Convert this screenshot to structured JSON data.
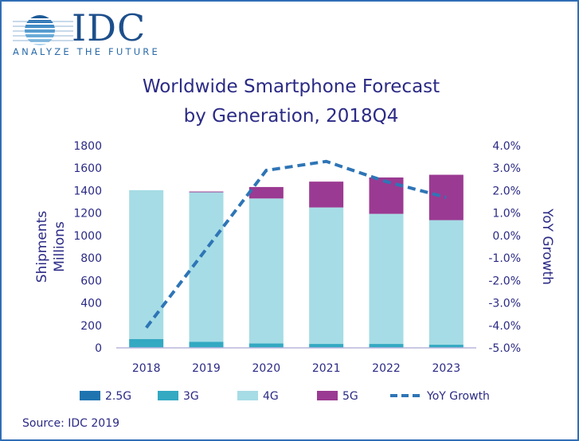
{
  "logo": {
    "name": "IDC",
    "tagline": "ANALYZE THE FUTURE"
  },
  "source": "Source: IDC 2019",
  "chart_data": {
    "type": "bar",
    "stacked": true,
    "title": "Worldwide Smartphone Forecast by Generation, 2018Q4",
    "title_lines": [
      "Worldwide Smartphone Forecast",
      "by Generation, 2018Q4"
    ],
    "ylabel_lines": [
      "Shipments",
      "Millions"
    ],
    "y2label": "YoY Growth",
    "categories": [
      "2018",
      "2019",
      "2020",
      "2021",
      "2022",
      "2023"
    ],
    "ylim": [
      0,
      1800
    ],
    "yticks": [
      "0",
      "200",
      "400",
      "600",
      "800",
      "1000",
      "1200",
      "1400",
      "1600",
      "1800"
    ],
    "y2lim": [
      -5.0,
      4.0
    ],
    "y2ticks": [
      "-5.0%",
      "-4.0%",
      "-3.0%",
      "-2.0%",
      "-1.0%",
      "0.0%",
      "1.0%",
      "2.0%",
      "3.0%",
      "4.0%"
    ],
    "grid": false,
    "legend_position": "bottom",
    "series": [
      {
        "name": "2.5G",
        "color": "#1f74b0",
        "values": [
          2,
          1,
          1,
          1,
          1,
          1
        ]
      },
      {
        "name": "3G",
        "color": "#33a9c2",
        "values": [
          76,
          54,
          39,
          34,
          34,
          27
        ]
      },
      {
        "name": "4G",
        "color": "#a6dce5",
        "values": [
          1326,
          1330,
          1290,
          1215,
          1158,
          1109
        ]
      },
      {
        "name": "5G",
        "color": "#9b3a92",
        "values": [
          0,
          7,
          102,
          230,
          324,
          404
        ]
      }
    ],
    "line_series": {
      "name": "YoY Growth",
      "color": "#2e75b6",
      "axis": "right",
      "values": [
        -4.1,
        -0.6,
        2.9,
        3.3,
        2.4,
        1.7
      ]
    }
  }
}
